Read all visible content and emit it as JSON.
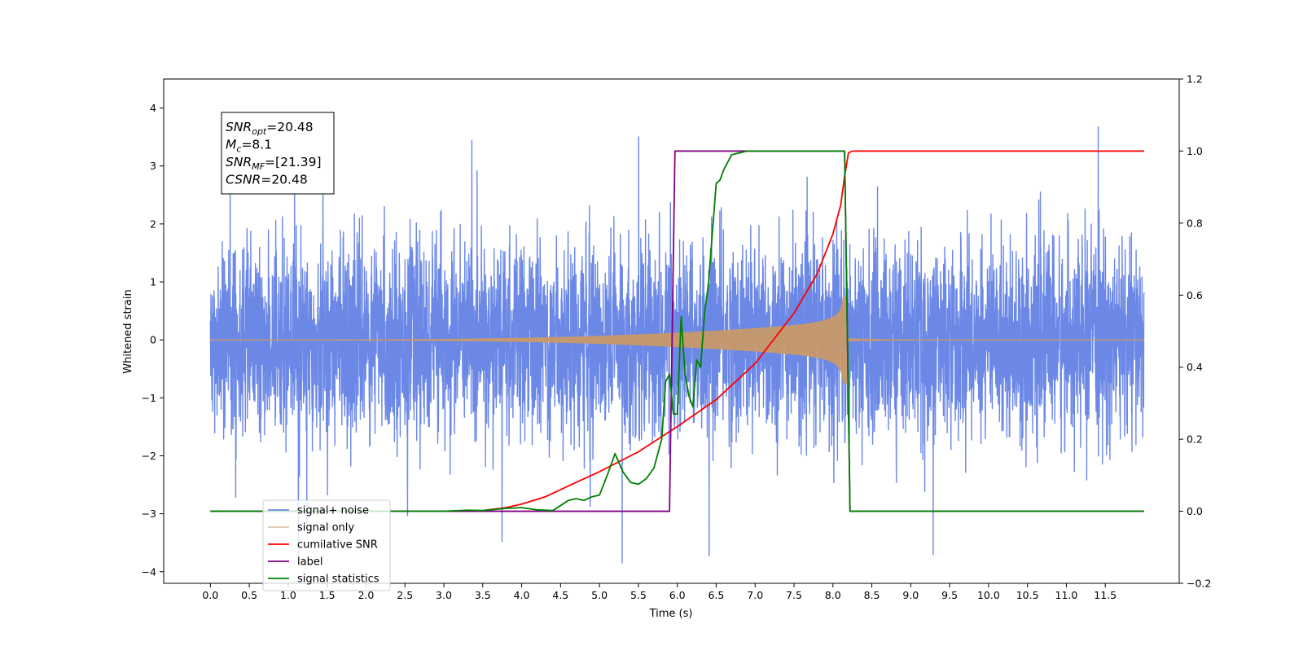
{
  "chart_data": {
    "type": "line",
    "xlabel": "Time (s)",
    "ylabel": "Whitened strain",
    "xlim": [
      -0.6,
      12.45
    ],
    "ylim": [
      -4.2,
      4.5
    ],
    "y2lim": [
      -0.2,
      1.2
    ],
    "xticks": [
      "0.0",
      "0.5",
      "1.0",
      "1.5",
      "2.0",
      "2.5",
      "3.0",
      "3.5",
      "4.0",
      "4.5",
      "5.0",
      "5.5",
      "6.0",
      "6.5",
      "7.0",
      "7.5",
      "8.0",
      "8.5",
      "9.0",
      "9.5",
      "10.0",
      "10.5",
      "11.0",
      "11.5"
    ],
    "yticks": [
      "4",
      "3",
      "2",
      "1",
      "0",
      "−1",
      "−2",
      "−3",
      "−4"
    ],
    "y2ticks": [
      "1.2",
      "1.0",
      "0.8",
      "0.6",
      "0.4",
      "0.2",
      "0.0",
      "−0.2"
    ],
    "grid": false,
    "legend_position": "lower-left",
    "annotation": {
      "lines": [
        {
          "sym": "SNR",
          "sub": "opt",
          "rest": "=20.48"
        },
        {
          "sym": "M",
          "sub": "c",
          "rest": "=8.1"
        },
        {
          "sym": "SNR",
          "sub": "MF",
          "rest": "=[21.39]"
        },
        {
          "sym": "CSNR",
          "sub": "",
          "rest": "=20.48"
        }
      ]
    },
    "series": [
      {
        "name": "signal+ noise",
        "color": "#6b88e6",
        "axis": "left",
        "kind": "noise",
        "noise_std": 0.8,
        "t_start": 0.0,
        "t_end": 12.0
      },
      {
        "name": "signal only",
        "color": "#c8996a",
        "axis": "left",
        "kind": "chirp",
        "t_merge": 8.15
      },
      {
        "name": "cumilative SNR",
        "color": "#ff0000",
        "axis": "right",
        "x": [
          0.0,
          3.0,
          3.5,
          3.8,
          4.0,
          4.3,
          4.6,
          5.0,
          5.5,
          6.0,
          6.5,
          7.0,
          7.5,
          7.8,
          8.0,
          8.1,
          8.15,
          8.2,
          8.25,
          12.0
        ],
        "y": [
          0.0,
          0.0,
          0.002,
          0.01,
          0.02,
          0.04,
          0.07,
          0.11,
          0.165,
          0.235,
          0.31,
          0.41,
          0.55,
          0.66,
          0.77,
          0.85,
          0.93,
          0.995,
          1.0,
          1.0
        ]
      },
      {
        "name": "label",
        "color": "#800080",
        "axis": "right",
        "x": [
          0.0,
          5.9,
          5.97,
          8.15,
          8.22,
          12.0
        ],
        "y": [
          0.0,
          0.0,
          1.0,
          1.0,
          0.0,
          0.0
        ]
      },
      {
        "name": "signal statistics",
        "color": "#008000",
        "axis": "right",
        "x": [
          0.0,
          3.0,
          3.3,
          3.5,
          3.8,
          4.0,
          4.2,
          4.4,
          4.6,
          4.7,
          4.8,
          4.9,
          5.0,
          5.1,
          5.2,
          5.3,
          5.4,
          5.5,
          5.6,
          5.7,
          5.8,
          5.85,
          5.9,
          5.95,
          6.0,
          6.05,
          6.1,
          6.15,
          6.2,
          6.25,
          6.3,
          6.35,
          6.4,
          6.5,
          6.55,
          6.6,
          6.7,
          6.8,
          6.9,
          7.0,
          8.15,
          8.22,
          12.0
        ],
        "y": [
          0.0,
          0.0,
          0.003,
          0.002,
          0.008,
          0.01,
          0.004,
          0.002,
          0.03,
          0.035,
          0.03,
          0.04,
          0.045,
          0.1,
          0.16,
          0.11,
          0.08,
          0.075,
          0.09,
          0.12,
          0.2,
          0.36,
          0.38,
          0.27,
          0.27,
          0.54,
          0.38,
          0.32,
          0.29,
          0.42,
          0.4,
          0.55,
          0.63,
          0.91,
          0.92,
          0.95,
          0.99,
          0.995,
          1.0,
          1.0,
          1.0,
          0.0,
          0.0
        ]
      }
    ]
  }
}
